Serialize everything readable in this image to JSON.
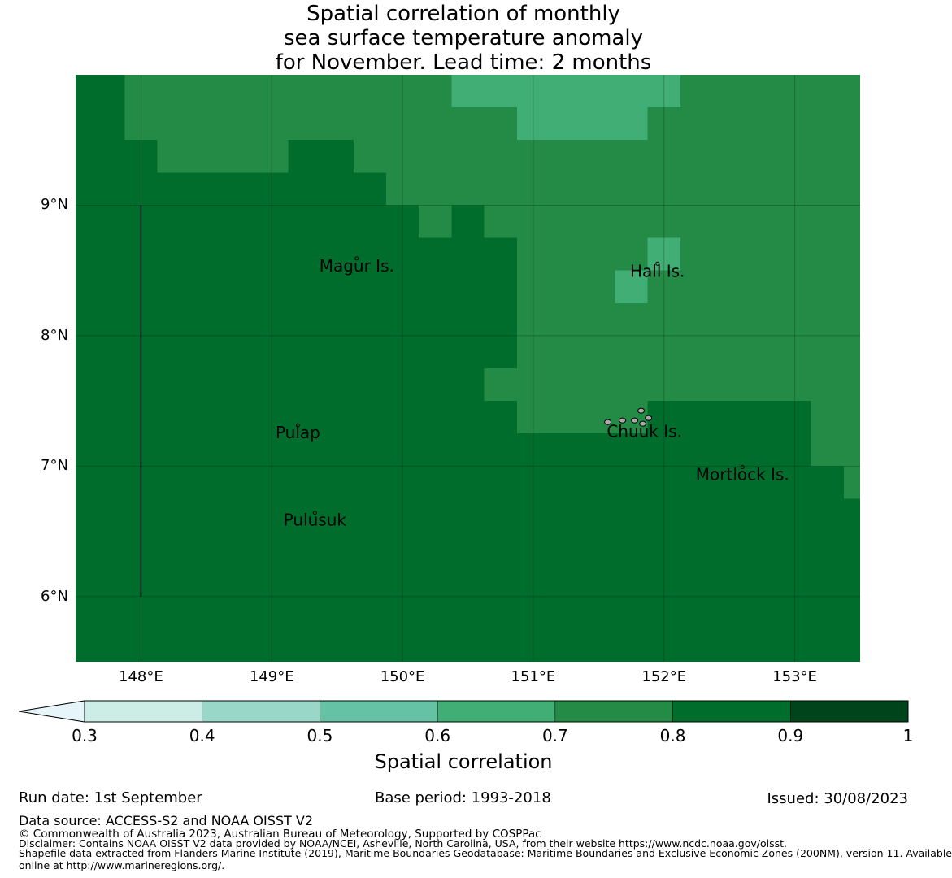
{
  "title": {
    "line1": "Spatial correlation of monthly",
    "line2": "sea surface temperature anomaly",
    "line3": "for November. Lead time: 2 months"
  },
  "chart_data": {
    "type": "heatmap",
    "x_range": [
      147.5,
      153.5
    ],
    "y_range": [
      5.5,
      10.0
    ],
    "cell_size_deg": 0.25,
    "x_ticks": [
      "148°E",
      "149°E",
      "150°E",
      "151°E",
      "152°E",
      "153°E"
    ],
    "x_tick_values": [
      148,
      149,
      150,
      151,
      152,
      153
    ],
    "y_ticks": [
      "9°N",
      "8°N",
      "7°N",
      "6°N"
    ],
    "y_tick_values": [
      9,
      8,
      7,
      6
    ],
    "default_value": 0.85,
    "regions": [
      {
        "lon": [
          147.875,
          148.125
        ],
        "lat": [
          9.5,
          10.0
        ],
        "value": 0.75
      },
      {
        "lon": [
          148.125,
          148.625
        ],
        "lat": [
          9.25,
          10.0
        ],
        "value": 0.75
      },
      {
        "lon": [
          148.625,
          149.125
        ],
        "lat": [
          9.25,
          10.0
        ],
        "value": 0.75
      },
      {
        "lon": [
          149.125,
          149.625
        ],
        "lat": [
          9.5,
          10.0
        ],
        "value": 0.75
      },
      {
        "lon": [
          149.625,
          149.875
        ],
        "lat": [
          9.25,
          10.0
        ],
        "value": 0.75
      },
      {
        "lon": [
          149.875,
          150.375
        ],
        "lat": [
          9.0,
          10.0
        ],
        "value": 0.75
      },
      {
        "lon": [
          150.375,
          153.5
        ],
        "lat": [
          9.0,
          10.0
        ],
        "value": 0.75
      },
      {
        "lon": [
          150.375,
          150.875
        ],
        "lat": [
          9.75,
          10.0
        ],
        "value": 0.65
      },
      {
        "lon": [
          150.875,
          151.875
        ],
        "lat": [
          9.5,
          10.0
        ],
        "value": 0.65
      },
      {
        "lon": [
          151.875,
          152.125
        ],
        "lat": [
          9.75,
          10.0
        ],
        "value": 0.65
      },
      {
        "lon": [
          150.125,
          150.375
        ],
        "lat": [
          8.75,
          9.0
        ],
        "value": 0.75
      },
      {
        "lon": [
          150.625,
          153.5
        ],
        "lat": [
          8.75,
          9.0
        ],
        "value": 0.75
      },
      {
        "lon": [
          150.875,
          153.5
        ],
        "lat": [
          7.25,
          8.75
        ],
        "value": 0.75
      },
      {
        "lon": [
          150.625,
          150.875
        ],
        "lat": [
          7.5,
          7.75
        ],
        "value": 0.75
      },
      {
        "lon": [
          151.875,
          152.125
        ],
        "lat": [
          8.5,
          8.75
        ],
        "value": 0.65
      },
      {
        "lon": [
          151.625,
          151.875
        ],
        "lat": [
          8.25,
          8.5
        ],
        "value": 0.65
      },
      {
        "lon": [
          151.875,
          153.5
        ],
        "lat": [
          7.25,
          7.5
        ],
        "value": 0.85
      },
      {
        "lon": [
          151.875,
          153.125
        ],
        "lat": [
          7.25,
          7.5
        ],
        "value": 0.85
      },
      {
        "lon": [
          153.125,
          153.5
        ],
        "lat": [
          7.0,
          7.5
        ],
        "value": 0.75
      },
      {
        "lon": [
          153.375,
          153.5
        ],
        "lat": [
          6.75,
          7.0
        ],
        "value": 0.75
      }
    ],
    "islands": [
      {
        "name": "Magur Is.",
        "lon": 149.65,
        "lat": 8.53
      },
      {
        "name": "Hall Is.",
        "lon": 151.95,
        "lat": 8.49
      },
      {
        "name": "Pulap",
        "lon": 149.2,
        "lat": 7.25
      },
      {
        "name": "Chuuk Is.",
        "lon": 151.85,
        "lat": 7.26
      },
      {
        "name": "Mortlock Is.",
        "lon": 152.6,
        "lat": 6.93
      },
      {
        "name": "Pulusuk",
        "lon": 149.33,
        "lat": 6.58
      }
    ],
    "boundary_line": {
      "lon": 148.0,
      "lat": [
        6.0,
        9.0
      ]
    },
    "colorbar": {
      "label": "Spatial correlation",
      "boundaries": [
        0.3,
        0.4,
        0.5,
        0.6,
        0.7,
        0.8,
        0.9,
        1.0
      ],
      "tick_labels": [
        "0.3",
        "0.4",
        "0.5",
        "0.6",
        "0.7",
        "0.8",
        "0.9",
        "1"
      ],
      "colors": [
        "#ccece6",
        "#99d8c9",
        "#66c2a4",
        "#41ae76",
        "#238b45",
        "#006d2c",
        "#00441b"
      ],
      "extend_min_color": "#e5f5f9"
    }
  },
  "footer": {
    "run_date": "Run date: 1st September",
    "base_period": "Base period: 1993-2018",
    "issued": "Issued: 30/08/2023",
    "data_source": "Data source: ACCESS-S2 and NOAA OISST V2",
    "copyright": "© Commonwealth of Australia 2023, Australian Bureau of Meteorology, Supported by COSPPac",
    "disclaimer": "Disclaimer: Contains NOAA OISST V2 data provided by NOAA/NCEI, Asheville, North Carolina, USA, from their website https://www.ncdc.noaa.gov/oisst.",
    "shapefile_1": "Shapefile data extracted from Flanders Marine Institute (2019), Maritime Boundaries Geodatabase: Maritime Boundaries and Exclusive Economic Zones (200NM), version 11. Available",
    "shapefile_2": "online at http://www.marineregions.org/."
  }
}
